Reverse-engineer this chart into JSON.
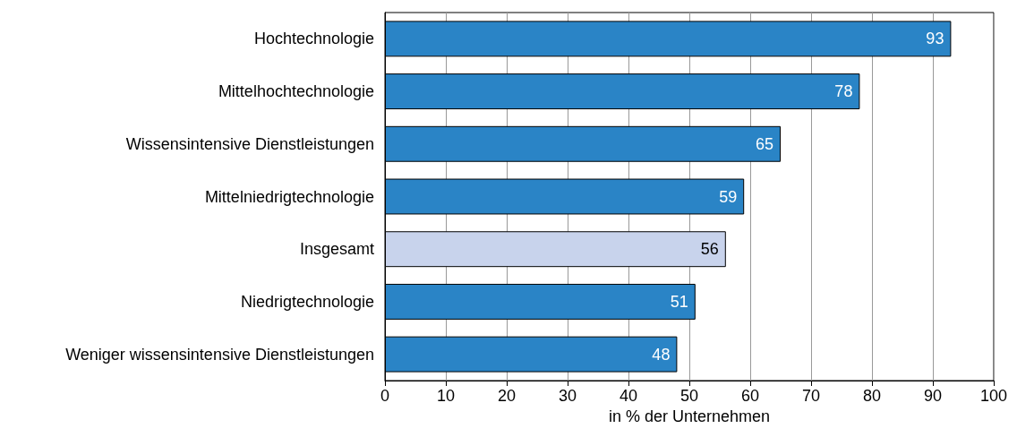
{
  "chart_data": {
    "type": "bar",
    "orientation": "horizontal",
    "xlabel": "in % der Unternehmen",
    "categories": [
      "Hochtechnologie",
      "Mittelhochtechnologie",
      "Wissensintensive Dienstleistungen",
      "Mittelniedrigtechnologie",
      "Insgesamt",
      "Niedrigtechnologie",
      "Weniger wissensintensive Dienstleistungen"
    ],
    "values": [
      93,
      78,
      65,
      59,
      56,
      51,
      48
    ],
    "colors": [
      "#2a84c6",
      "#2a84c6",
      "#2a84c6",
      "#2a84c6",
      "#c8d3ec",
      "#2a84c6",
      "#2a84c6"
    ],
    "xlim": [
      0,
      100
    ],
    "xticks": [
      0,
      10,
      20,
      30,
      40,
      50,
      60,
      70,
      80,
      90,
      100
    ],
    "grid": "x",
    "data_labels": true
  }
}
